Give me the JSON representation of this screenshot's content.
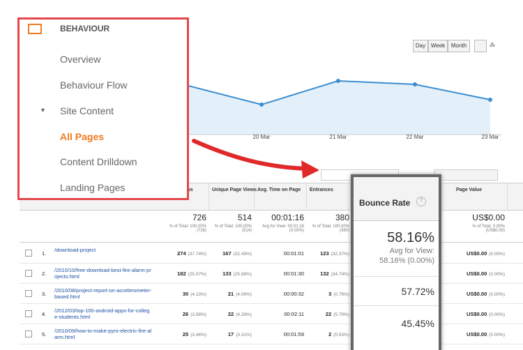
{
  "sidebar": {
    "title": "BEHAVIOUR",
    "items": [
      "Overview",
      "Behaviour Flow",
      "Site Content",
      "All Pages",
      "Content Drilldown",
      "Landing Pages"
    ]
  },
  "toolbar": {
    "buttons": [
      "Day",
      "Week",
      "Month"
    ]
  },
  "chart": {
    "x_labels": [
      "20 Mar",
      "21 Mar",
      "22 Mar",
      "23 Mar"
    ]
  },
  "table": {
    "headers": {
      "pageviews": "Pageviews",
      "unique": "Unique Page Views",
      "time": "Avg. Time on Page",
      "entrances": "Entrances",
      "value": "Page Value"
    },
    "totals": {
      "pageviews": {
        "main": "726",
        "sub": "% of Total: 100.00% (726)"
      },
      "unique": {
        "main": "514",
        "sub": "% of Total: 100.00% (514)"
      },
      "time": {
        "main": "00:01:16",
        "sub": "Avg for View: 00:01:16 (0.00%)"
      },
      "entrances": {
        "main": "380",
        "sub": "% of Total: 100.00% (380)"
      },
      "value": {
        "main": "US$0.00",
        "sub": "% of Total: 0.00% (US$0.00)"
      }
    },
    "rows": [
      {
        "index": "1.",
        "page": "/download-project",
        "pageviews": "274",
        "pageviews_pct": "(37.74%)",
        "unique": "167",
        "unique_pct": "(32.49%)",
        "time": "00:01:01",
        "entrances": "123",
        "entrances_pct": "(32.37%)",
        "value": "US$0.00",
        "value_pct": "(0.00%)"
      },
      {
        "index": "2.",
        "page": "/2010/10/free-download-best-fire-alarm-projects.html",
        "pageviews": "182",
        "pageviews_pct": "(25.07%)",
        "unique": "133",
        "unique_pct": "(25.88%)",
        "time": "00:01:30",
        "entrances": "132",
        "entrances_pct": "(34.74%)",
        "value": "US$0.00",
        "value_pct": "(0.00%)"
      },
      {
        "index": "3.",
        "page": "/2010/08/project-report-on-accelerometer-based.html",
        "pageviews": "30",
        "pageviews_pct": "(4.13%)",
        "unique": "21",
        "unique_pct": "(4.09%)",
        "time": "00:00:32",
        "entrances": "3",
        "entrances_pct": "(0.79%)",
        "value": "US$0.00",
        "value_pct": "(0.00%)"
      },
      {
        "index": "4.",
        "page": "/2012/03/top-100-android-apps-for-college-students.html",
        "pageviews": "26",
        "pageviews_pct": "(3.58%)",
        "unique": "22",
        "unique_pct": "(4.28%)",
        "time": "00:02:11",
        "entrances": "22",
        "entrances_pct": "(5.79%)",
        "value": "US$0.00",
        "value_pct": "(0.00%)"
      },
      {
        "index": "5.",
        "page": "/2010/09/how-to-make-pyro-electric-fire-alarm.html",
        "pageviews": "25",
        "pageviews_pct": "(3.44%)",
        "unique": "17",
        "unique_pct": "(3.31%)",
        "time": "00:01:59",
        "entrances": "2",
        "entrances_pct": "(0.53%)",
        "value": "US$0.00",
        "value_pct": "(0.00%)"
      }
    ]
  },
  "bounce": {
    "header": "Bounce Rate",
    "total": "58.16%",
    "sub1": "Avg for View:",
    "sub2": "58.16% (0.00%)",
    "rows": [
      "57.72%",
      "45.45%"
    ]
  }
}
